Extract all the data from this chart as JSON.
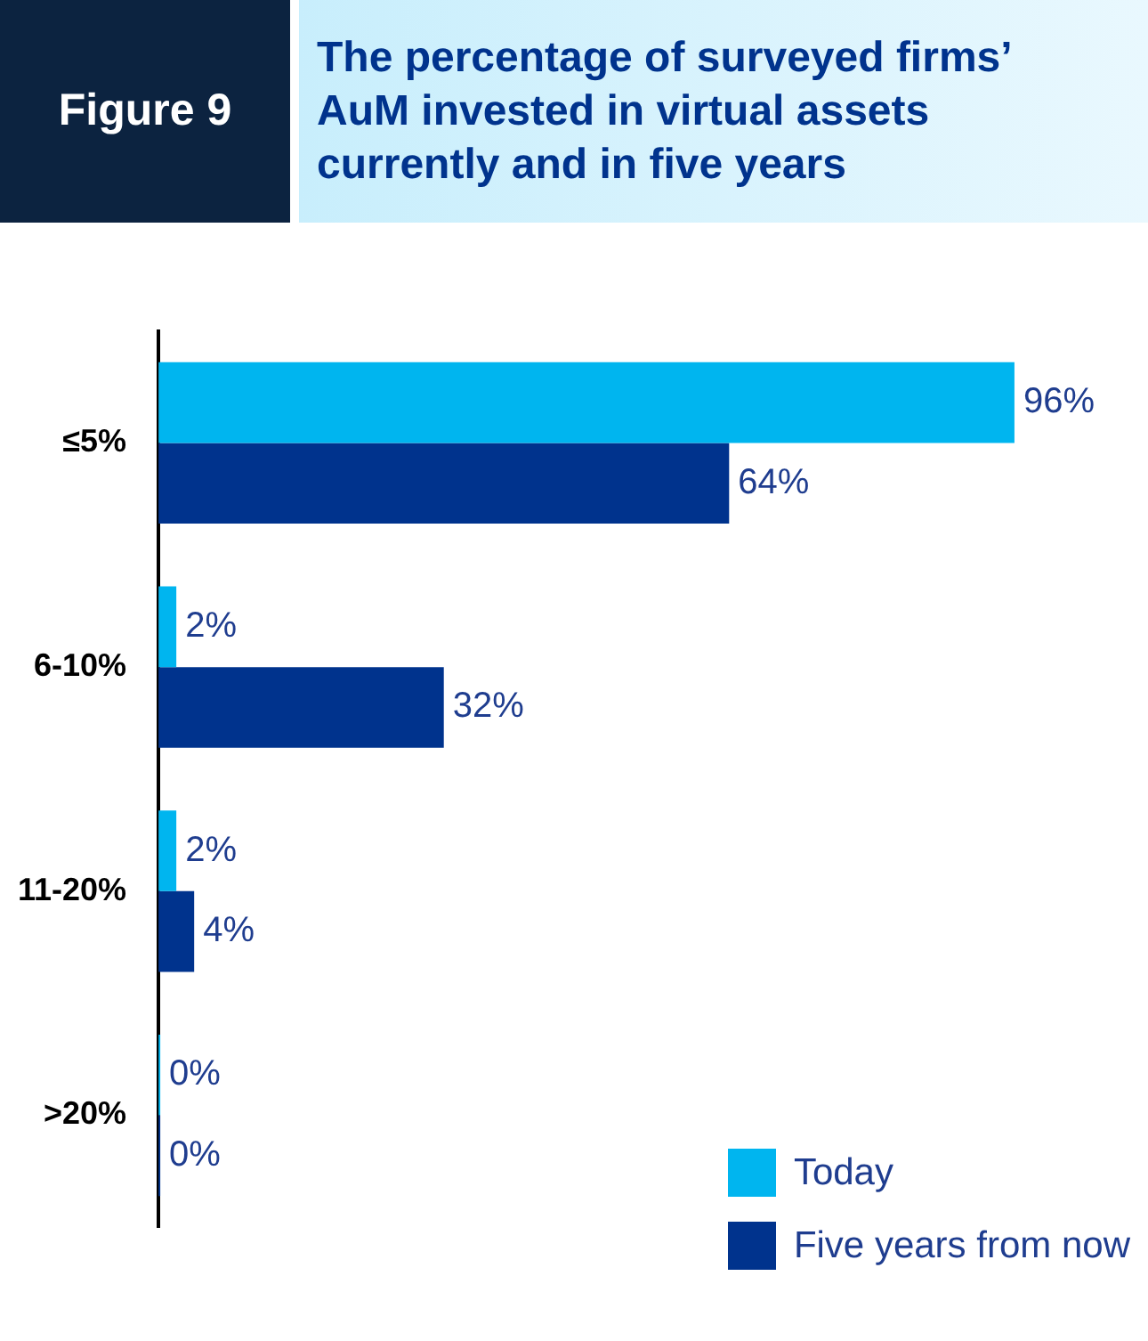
{
  "chart_data": {
    "type": "bar",
    "orientation": "horizontal",
    "title": "The percentage of surveyed firms’ AuM invested in virtual assets currently and in five years",
    "annotations": [
      "Figure 9"
    ],
    "categories": [
      "≤5%",
      "6-10%",
      "11-20%",
      ">20%"
    ],
    "series": [
      {
        "name": "Today",
        "color": "#00b5ef",
        "values": [
          96,
          2,
          2,
          0
        ],
        "value_labels": [
          "96%",
          "2%",
          "2%",
          "0%"
        ]
      },
      {
        "name": "Five years from now",
        "color": "#00338d",
        "values": [
          64,
          32,
          4,
          0
        ],
        "value_labels": [
          "64%",
          "32%",
          "4%",
          "0%"
        ]
      }
    ],
    "tick_labels": "y",
    "legend": "bottom right"
  }
}
